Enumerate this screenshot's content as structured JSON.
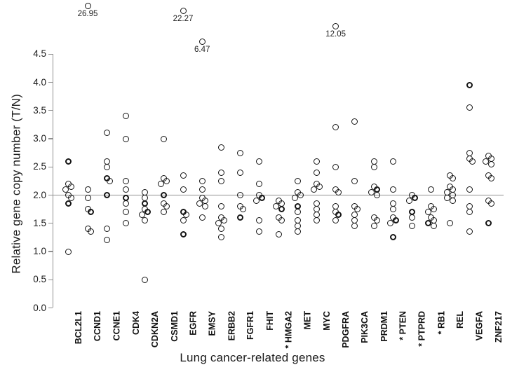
{
  "chart_data": {
    "type": "scatter",
    "title": "",
    "xlabel": "Lung cancer-related genes",
    "ylabel": "Relative gene copy number (T/N)",
    "ylim": [
      0.0,
      4.5
    ],
    "yticks": [
      "0.0",
      "0.5",
      "1.0",
      "1.5",
      "2.0",
      "2.5",
      "3.0",
      "3.5",
      "4.0",
      "4.5"
    ],
    "reference_line": 2.0,
    "grid": false,
    "legend": "none",
    "marker": "open-circle",
    "axis_color": "#8f8f8f",
    "point_color": "#141414",
    "star_note_genes": [
      "HMGA2",
      "PTEN",
      "PTPRD",
      "RB1"
    ],
    "categories": [
      {
        "gene": "BCL2L1",
        "starred": false,
        "values": [
          2.6,
          2.6,
          2.2,
          2.15,
          2.1,
          2.0,
          1.95,
          1.85,
          1.85,
          1.0
        ]
      },
      {
        "gene": "CCND1",
        "starred": false,
        "values": [
          2.1,
          1.95,
          1.75,
          1.7,
          1.7,
          1.4,
          1.35
        ],
        "outlier": {
          "value": 26.95,
          "label": "26.95"
        }
      },
      {
        "gene": "CCNE1",
        "starred": false,
        "values": [
          3.1,
          2.6,
          2.5,
          2.3,
          2.3,
          2.25,
          2.0,
          2.0,
          1.4,
          1.2
        ]
      },
      {
        "gene": "CDK4",
        "starred": false,
        "values": [
          3.4,
          3.0,
          2.25,
          2.1,
          1.95,
          1.95,
          1.85,
          1.7,
          1.5
        ]
      },
      {
        "gene": "CDKN2A",
        "starred": false,
        "values": [
          2.05,
          1.95,
          1.85,
          1.85,
          1.75,
          1.7,
          1.7,
          1.65,
          1.55,
          0.5
        ]
      },
      {
        "gene": "CSMD1",
        "starred": false,
        "values": [
          3.0,
          2.3,
          2.25,
          2.2,
          2.0,
          2.0,
          1.85,
          1.8,
          1.7
        ]
      },
      {
        "gene": "EGFR",
        "starred": false,
        "values": [
          2.35,
          2.1,
          1.7,
          1.7,
          1.65,
          1.55,
          1.3,
          1.3
        ],
        "outlier": {
          "value": 22.27,
          "label": "22.27"
        }
      },
      {
        "gene": "EMSY",
        "starred": false,
        "values": [
          2.25,
          2.1,
          1.95,
          1.9,
          1.85,
          1.8,
          1.6
        ],
        "outlier": {
          "value": 6.47,
          "label": "6.47"
        }
      },
      {
        "gene": "ERBB2",
        "starred": false,
        "values": [
          2.85,
          2.4,
          2.25,
          1.8,
          1.6,
          1.55,
          1.5,
          1.4,
          1.25
        ]
      },
      {
        "gene": "FGFR1",
        "starred": false,
        "values": [
          2.75,
          2.4,
          2.0,
          1.8,
          1.75,
          1.6,
          1.6
        ]
      },
      {
        "gene": "FHIT",
        "starred": false,
        "values": [
          2.6,
          2.2,
          2.0,
          1.95,
          1.95,
          1.9,
          1.55,
          1.35
        ]
      },
      {
        "gene": "HMGA2",
        "starred": true,
        "values": [
          1.9,
          1.85,
          1.8,
          1.75,
          1.75,
          1.6,
          1.55,
          1.3
        ]
      },
      {
        "gene": "MET",
        "starred": false,
        "values": [
          2.25,
          2.05,
          2.0,
          1.95,
          1.8,
          1.8,
          1.7,
          1.55,
          1.45,
          1.35
        ]
      },
      {
        "gene": "MYC",
        "starred": false,
        "values": [
          2.6,
          2.4,
          2.2,
          2.15,
          2.1,
          1.85,
          1.75,
          1.65,
          1.55
        ]
      },
      {
        "gene": "PDGFRA",
        "starred": false,
        "values": [
          3.2,
          2.5,
          2.1,
          2.05,
          1.8,
          1.7,
          1.65,
          1.65,
          1.55
        ],
        "outlier": {
          "value": 12.05,
          "label": "12.05"
        }
      },
      {
        "gene": "PIK3CA",
        "starred": false,
        "values": [
          3.3,
          2.25,
          1.8,
          1.75,
          1.65,
          1.55,
          1.45
        ]
      },
      {
        "gene": "PRDM1",
        "starred": false,
        "values": [
          2.6,
          2.5,
          2.15,
          2.1,
          2.1,
          2.05,
          2.0,
          1.6,
          1.55,
          1.45
        ]
      },
      {
        "gene": "PTEN",
        "starred": true,
        "values": [
          2.6,
          2.1,
          1.85,
          1.75,
          1.6,
          1.55,
          1.55,
          1.5,
          1.25,
          1.25
        ]
      },
      {
        "gene": "PTPRD",
        "starred": true,
        "values": [
          2.0,
          1.95,
          1.95,
          1.9,
          1.7,
          1.7,
          1.6,
          1.45
        ]
      },
      {
        "gene": "RB1",
        "starred": true,
        "values": [
          2.1,
          1.8,
          1.75,
          1.7,
          1.6,
          1.55,
          1.5,
          1.5,
          1.45
        ]
      },
      {
        "gene": "REL",
        "starred": false,
        "values": [
          2.35,
          2.3,
          2.15,
          2.1,
          2.05,
          2.0,
          1.95,
          1.9,
          1.5
        ]
      },
      {
        "gene": "VEGFA",
        "starred": false,
        "values": [
          3.95,
          3.95,
          3.55,
          2.75,
          2.65,
          2.6,
          2.1,
          1.8,
          1.7,
          1.35
        ]
      },
      {
        "gene": "ZNF217",
        "starred": false,
        "values": [
          2.7,
          2.65,
          2.6,
          2.55,
          2.35,
          2.3,
          1.9,
          1.85,
          1.5,
          1.5
        ]
      }
    ]
  }
}
